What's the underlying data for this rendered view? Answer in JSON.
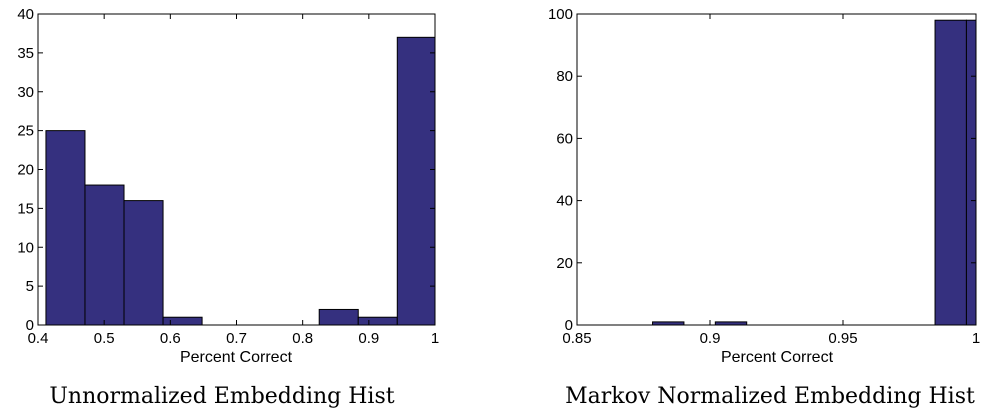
{
  "chart_data": [
    {
      "type": "bar",
      "caption": "Unnormalized Embedding Hist",
      "xlabel": "Percent Correct",
      "ylabel": "",
      "xlim": [
        0.4,
        1.0
      ],
      "ylim": [
        0,
        40
      ],
      "xticks": [
        "0.4",
        "0.5",
        "0.6",
        "0.7",
        "0.8",
        "0.9",
        "1"
      ],
      "yticks": [
        "0",
        "5",
        "10",
        "15",
        "20",
        "25",
        "30",
        "35",
        "40"
      ],
      "bins": [
        {
          "start": 0.412,
          "end": 0.471,
          "value": 25
        },
        {
          "start": 0.471,
          "end": 0.53,
          "value": 18
        },
        {
          "start": 0.53,
          "end": 0.589,
          "value": 16
        },
        {
          "start": 0.589,
          "end": 0.648,
          "value": 1
        },
        {
          "start": 0.648,
          "end": 0.707,
          "value": 0
        },
        {
          "start": 0.707,
          "end": 0.766,
          "value": 0
        },
        {
          "start": 0.766,
          "end": 0.825,
          "value": 0
        },
        {
          "start": 0.825,
          "end": 0.884,
          "value": 2
        },
        {
          "start": 0.884,
          "end": 0.943,
          "value": 1
        },
        {
          "start": 0.943,
          "end": 1.0,
          "value": 37
        }
      ],
      "bar_color": "#35307f"
    },
    {
      "type": "bar",
      "caption": "Markov Normalized Embedding Hist",
      "xlabel": "Percent Correct",
      "ylabel": "",
      "xlim": [
        0.85,
        1.0
      ],
      "ylim": [
        0,
        100
      ],
      "xticks": [
        "0.85",
        "0.9",
        "0.95",
        "1"
      ],
      "yticks": [
        "0",
        "20",
        "40",
        "60",
        "80",
        "100"
      ],
      "bins": [
        {
          "start": 0.8666,
          "end": 0.8784,
          "value": 0
        },
        {
          "start": 0.8784,
          "end": 0.8902,
          "value": 1
        },
        {
          "start": 0.8902,
          "end": 0.902,
          "value": 0
        },
        {
          "start": 0.902,
          "end": 0.9138,
          "value": 1
        },
        {
          "start": 0.9138,
          "end": 0.9256,
          "value": 0
        },
        {
          "start": 0.9256,
          "end": 0.9374,
          "value": 0
        },
        {
          "start": 0.9374,
          "end": 0.9492,
          "value": 0
        },
        {
          "start": 0.9492,
          "end": 0.961,
          "value": 0
        },
        {
          "start": 0.961,
          "end": 0.9728,
          "value": 0
        },
        {
          "start": 0.9728,
          "end": 0.9846,
          "value": 0
        },
        {
          "start": 0.9846,
          "end": 0.9964,
          "value": 98
        },
        {
          "start": 0.9964,
          "end": 1.0,
          "value": 98
        }
      ],
      "bar_color": "#35307f"
    }
  ]
}
